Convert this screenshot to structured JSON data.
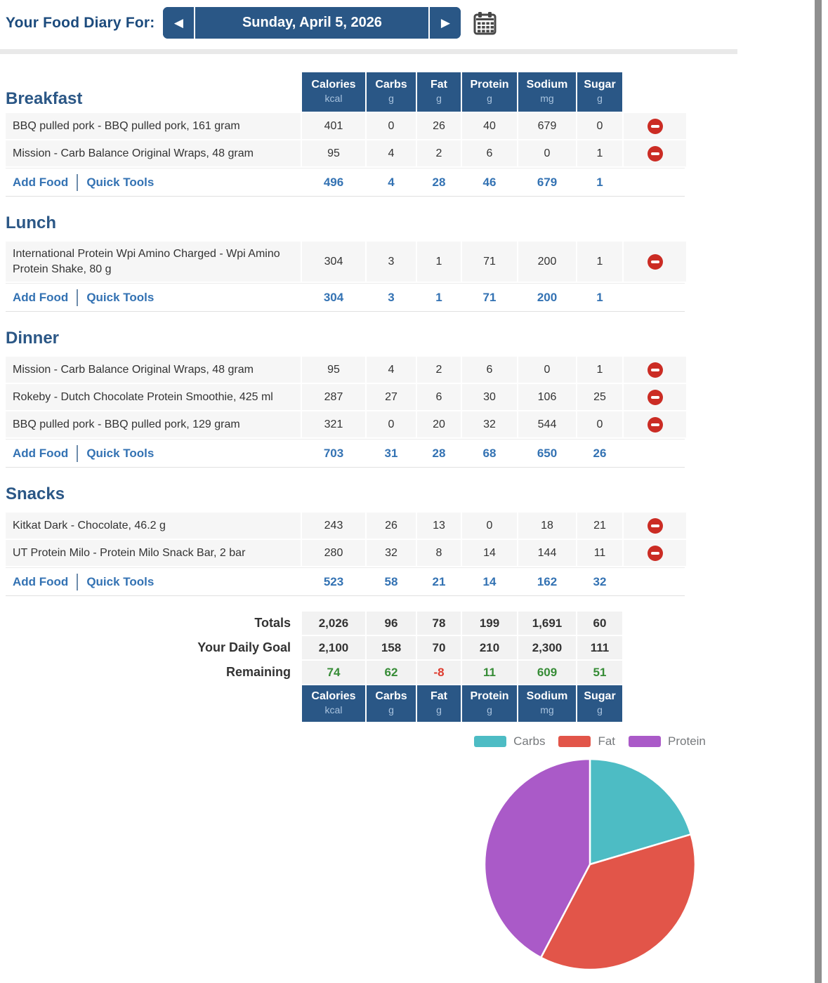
{
  "page": {
    "title_label": "Your Food Diary For:",
    "date": "Sunday, April 5, 2026"
  },
  "columns": [
    {
      "label": "Calories",
      "unit": "kcal"
    },
    {
      "label": "Carbs",
      "unit": "g"
    },
    {
      "label": "Fat",
      "unit": "g"
    },
    {
      "label": "Protein",
      "unit": "g"
    },
    {
      "label": "Sodium",
      "unit": "mg"
    },
    {
      "label": "Sugar",
      "unit": "g"
    }
  ],
  "actions": {
    "add_food": "Add Food",
    "quick_tools": "Quick Tools"
  },
  "meals": [
    {
      "name": "Breakfast",
      "foods": [
        {
          "name": "BBQ pulled pork - BBQ pulled pork, 161 gram",
          "values": [
            "401",
            "0",
            "26",
            "40",
            "679",
            "0"
          ]
        },
        {
          "name": "Mission - Carb Balance Original Wraps, 48 gram",
          "values": [
            "95",
            "4",
            "2",
            "6",
            "0",
            "1"
          ]
        }
      ],
      "totals": [
        "496",
        "4",
        "28",
        "46",
        "679",
        "1"
      ]
    },
    {
      "name": "Lunch",
      "foods": [
        {
          "name": "International Protein Wpi Amino Charged - Wpi Amino Protein Shake, 80 g",
          "values": [
            "304",
            "3",
            "1",
            "71",
            "200",
            "1"
          ]
        }
      ],
      "totals": [
        "304",
        "3",
        "1",
        "71",
        "200",
        "1"
      ]
    },
    {
      "name": "Dinner",
      "foods": [
        {
          "name": "Mission - Carb Balance Original Wraps, 48 gram",
          "values": [
            "95",
            "4",
            "2",
            "6",
            "0",
            "1"
          ]
        },
        {
          "name": "Rokeby - Dutch Chocolate Protein Smoothie, 425 ml",
          "values": [
            "287",
            "27",
            "6",
            "30",
            "106",
            "25"
          ]
        },
        {
          "name": "BBQ pulled pork - BBQ pulled pork, 129 gram",
          "values": [
            "321",
            "0",
            "20",
            "32",
            "544",
            "0"
          ]
        }
      ],
      "totals": [
        "703",
        "31",
        "28",
        "68",
        "650",
        "26"
      ]
    },
    {
      "name": "Snacks",
      "foods": [
        {
          "name": "Kitkat Dark - Chocolate, 46.2 g",
          "values": [
            "243",
            "26",
            "13",
            "0",
            "18",
            "21"
          ]
        },
        {
          "name": "UT Protein Milo - Protein Milo Snack Bar, 2 bar",
          "values": [
            "280",
            "32",
            "8",
            "14",
            "144",
            "11"
          ]
        }
      ],
      "totals": [
        "523",
        "58",
        "21",
        "14",
        "162",
        "32"
      ]
    }
  ],
  "summary": {
    "rows": [
      {
        "label": "Totals",
        "values": [
          "2,026",
          "96",
          "78",
          "199",
          "1,691",
          "60"
        ],
        "colored": false
      },
      {
        "label": "Your Daily Goal",
        "values": [
          "2,100",
          "158",
          "70",
          "210",
          "2,300",
          "111"
        ],
        "colored": false
      },
      {
        "label": "Remaining",
        "values": [
          "74",
          "62",
          "-8",
          "11",
          "609",
          "51"
        ],
        "colored": true
      }
    ]
  },
  "chart_data": {
    "type": "pie",
    "title": "",
    "legend_position": "top",
    "start_angle": "top",
    "direction": "clockwise",
    "series": [
      {
        "label": "Carbs",
        "value_kcal": 384,
        "percent": 20.4,
        "color": "#4DBCC4"
      },
      {
        "label": "Fat",
        "value_kcal": 702,
        "percent": 37.3,
        "color": "#E25549"
      },
      {
        "label": "Protein",
        "value_kcal": 796,
        "percent": 42.3,
        "color": "#AA5AC8"
      }
    ]
  },
  "colors": {
    "header_blue": "#2A5786",
    "page_title_blue": "#1C4B7D",
    "section_title_blue": "#2B5786",
    "link_blue": "#3372B3",
    "positive_green": "#368C36",
    "negative_red": "#DE3A2D",
    "delete_red": "#CB2C24",
    "row_gray": "#F6F6F6",
    "scrollbar_gray": "#8F8F8F"
  }
}
